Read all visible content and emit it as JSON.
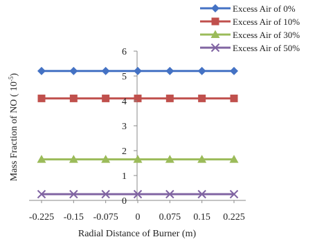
{
  "chart_data": {
    "type": "line",
    "title": "",
    "xlabel": "Radial Distance of Burner  (m)",
    "ylabel": "Mass Fraction of NO ( 10",
    "ylabel_sup": "-5",
    "ylabel_end": ")",
    "categories": [
      "-0.225",
      "-0.15",
      "-0.075",
      "0",
      "0.075",
      "0.15",
      "0.225"
    ],
    "y_ticks": [
      "0",
      "1",
      "2",
      "3",
      "4",
      "5",
      "6"
    ],
    "ylim": [
      0,
      6
    ],
    "grid": false,
    "legend_position": "top-right",
    "series": [
      {
        "name": "Excess Air of 0%",
        "marker": "diamond",
        "color": "#4472C4",
        "values": [
          5.2,
          5.2,
          5.2,
          5.2,
          5.2,
          5.2,
          5.2
        ]
      },
      {
        "name": "Excess Air of 10%",
        "marker": "square",
        "color": "#C0504D",
        "values": [
          4.1,
          4.1,
          4.1,
          4.1,
          4.1,
          4.1,
          4.1
        ]
      },
      {
        "name": "Excess Air of 30%",
        "marker": "triangle",
        "color": "#9BBB59",
        "values": [
          1.65,
          1.65,
          1.65,
          1.65,
          1.65,
          1.65,
          1.65
        ]
      },
      {
        "name": "Excess Air of  50%",
        "marker": "x",
        "color": "#8064A2",
        "values": [
          0.25,
          0.25,
          0.25,
          0.25,
          0.25,
          0.25,
          0.25
        ]
      }
    ]
  }
}
